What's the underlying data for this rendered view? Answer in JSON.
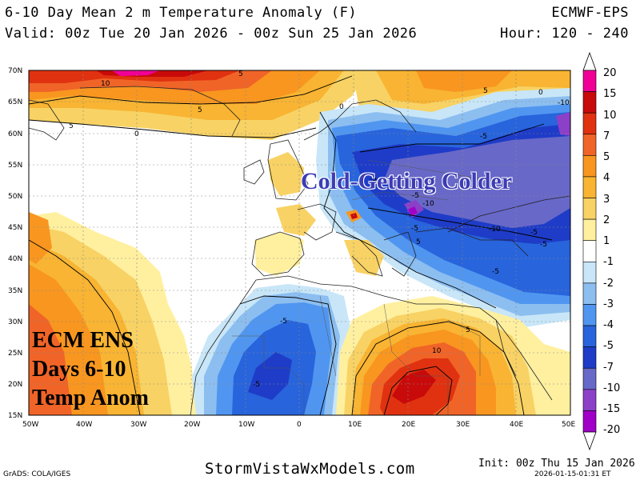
{
  "header": {
    "title": "6-10 Day Mean 2 m Temperature Anomaly (F)",
    "model": "ECMWF-EPS",
    "valid": "Valid: 00z Tue 20 Jan 2026 - 00z Sun 25 Jan 2026",
    "hours": "Hour: 120 - 240"
  },
  "annotations": {
    "cold_text": "Cold-Getting Colder",
    "ecm_line1": "ECM ENS",
    "ecm_line2": "Days 6-10",
    "ecm_line3": "Temp Anom"
  },
  "map": {
    "lat_labels": [
      "70N",
      "65N",
      "60N",
      "55N",
      "50N",
      "45N",
      "40N",
      "35N",
      "30N",
      "25N",
      "20N",
      "15N"
    ],
    "lon_labels": [
      "50W",
      "40W",
      "30W",
      "20W",
      "10W",
      "0",
      "10E",
      "20E",
      "30E",
      "40E",
      "50E"
    ],
    "contour_labels": [
      "10",
      "5",
      "5",
      "5",
      "0",
      "5",
      "0",
      "-5",
      "-10",
      "-5",
      "-10",
      "-5",
      "-5",
      "-10",
      "-5",
      "-5",
      "-5",
      "5",
      "10",
      "-5",
      "-5",
      "0",
      "5"
    ],
    "colors": {
      "n20": "#a000c8",
      "n15": "#8c40c8",
      "n10": "#6868c8",
      "n7": "#1e3cc8",
      "n5": "#2864dc",
      "n3": "#5096f0",
      "n2": "#8cbef0",
      "n1": "#c8e6f8",
      "z": "#ffffff",
      "p1": "#fff0a0",
      "p2": "#f8d264",
      "p3": "#f8b432",
      "p4": "#f89620",
      "p5": "#f06428",
      "p7": "#e03210",
      "p10": "#c80a0a",
      "p15": "#f00096",
      "p20": "#a00078"
    }
  },
  "colorbar": {
    "labels": [
      "20",
      "15",
      "10",
      "7",
      "5",
      "4",
      "3",
      "2",
      "1",
      "-1",
      "-2",
      "-3",
      "-4",
      "-5",
      "-7",
      "-10",
      "-15",
      "-20"
    ],
    "colors": [
      "#f00096",
      "#c80a0a",
      "#e03210",
      "#f06428",
      "#f89620",
      "#f8b432",
      "#f8d264",
      "#fff0a0",
      "#ffffff",
      "#c8e6f8",
      "#8cbef0",
      "#5096f0",
      "#2864dc",
      "#1e3cc8",
      "#6868c8",
      "#8c40c8",
      "#a000c8"
    ]
  },
  "footer": {
    "grads": "GrADS: COLA/IGES",
    "site": "StormVistaWxModels.com",
    "init": "Init: 00z Thu 15 Jan 2026",
    "stamp": "2026-01-15-01:31 ET"
  }
}
